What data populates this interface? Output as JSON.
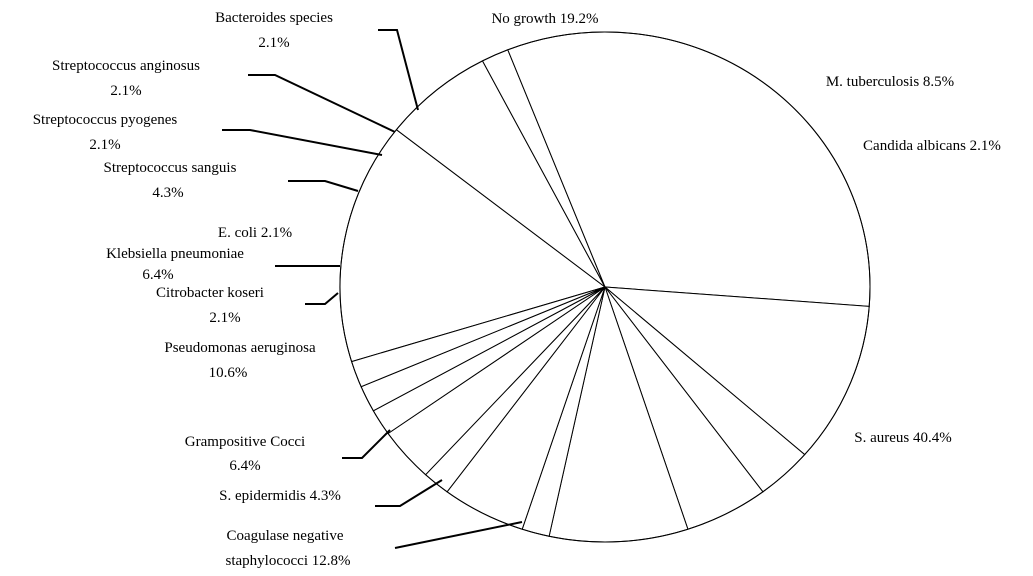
{
  "chart_data": {
    "type": "pie",
    "title": "",
    "slices": [
      {
        "name": "No growth",
        "value": 19.2,
        "value_label": "19.2%"
      },
      {
        "name": "M. tuberculosis",
        "value": 8.5,
        "value_label": "8.5%"
      },
      {
        "name": "Candida albicans",
        "value": 2.1,
        "value_label": "2.1%"
      },
      {
        "name": "S. aureus",
        "value": 40.4,
        "value_label": "40.4%"
      },
      {
        "name": "Coagulase negative staphylococci",
        "value": 12.8,
        "value_label": "12.8%"
      },
      {
        "name": "S. epidermidis",
        "value": 4.3,
        "value_label": "4.3%"
      },
      {
        "name": "Grampositive Cocci",
        "value": 6.4,
        "value_label": "6.4%"
      },
      {
        "name": "Pseudomonas aeruginosa",
        "value": 10.6,
        "value_label": "10.6%"
      },
      {
        "name": "Citrobacter koseri",
        "value": 2.1,
        "value_label": "2.1%"
      },
      {
        "name": "Klebsiella pneumoniae",
        "value": 6.4,
        "value_label": "6.4%"
      },
      {
        "name": "E. coli",
        "value": 2.1,
        "value_label": "2.1%"
      },
      {
        "name": "Streptococcus sanguis",
        "value": 4.3,
        "value_label": "4.3%"
      },
      {
        "name": "Streptococcus pyogenes",
        "value": 2.1,
        "value_label": "2.1%"
      },
      {
        "name": "Streptococcus anginosus",
        "value": 2.1,
        "value_label": "2.1%"
      },
      {
        "name": "Bacteroides species",
        "value": 2.1,
        "value_label": "2.1%"
      }
    ],
    "colors": {
      "fill": "#ffffff",
      "stroke": "#000000"
    }
  }
}
